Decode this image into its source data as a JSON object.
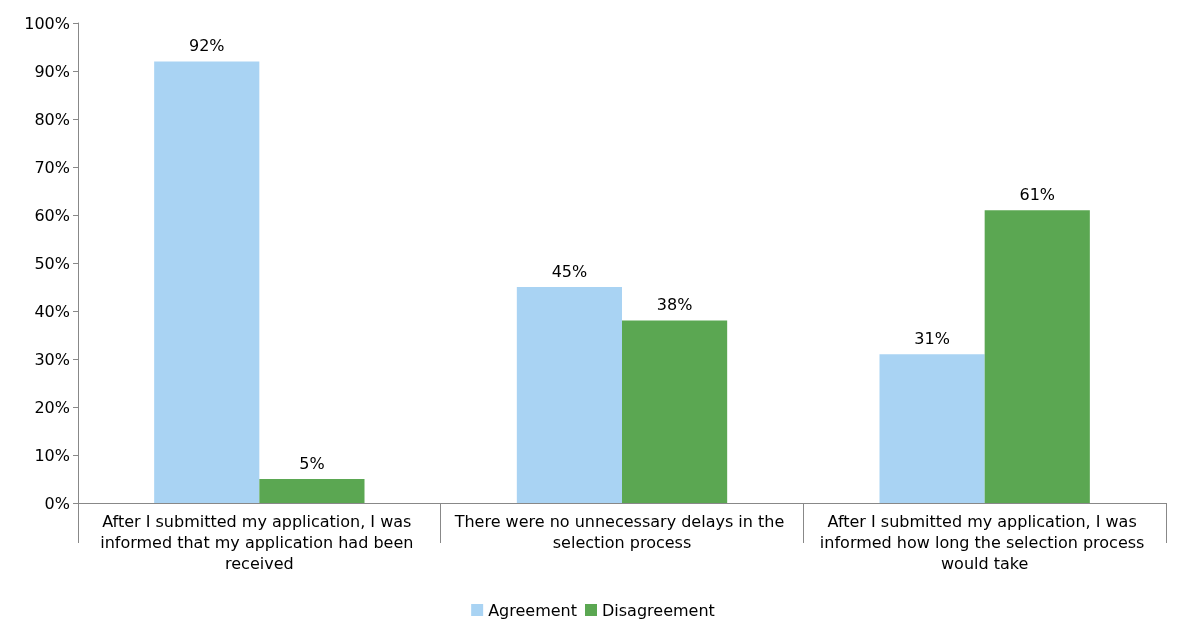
{
  "chart_data": {
    "type": "bar",
    "categories": [
      "After I submitted my application, I was informed that my application had been received",
      "There were no unnecessary delays in the selection process",
      "After I submitted my application, I was informed how long the selection process would take"
    ],
    "series": [
      {
        "name": "Agreement",
        "color": "#a9d3f3",
        "values": [
          92,
          45,
          31
        ],
        "value_labels": [
          "92%",
          "45%",
          "31%"
        ]
      },
      {
        "name": "Disagreement",
        "color": "#5ba752",
        "values": [
          5,
          38,
          61
        ],
        "value_labels": [
          "5%",
          "38%",
          "61%"
        ]
      }
    ],
    "ylim": [
      0,
      100
    ],
    "yticks": [
      {
        "value": 0,
        "label": "0%"
      },
      {
        "value": 10,
        "label": "10%"
      },
      {
        "value": 20,
        "label": "20%"
      },
      {
        "value": 30,
        "label": "30%"
      },
      {
        "value": 40,
        "label": "40%"
      },
      {
        "value": 50,
        "label": "50%"
      },
      {
        "value": 60,
        "label": "60%"
      },
      {
        "value": 70,
        "label": "70%"
      },
      {
        "value": 80,
        "label": "80%"
      },
      {
        "value": 90,
        "label": "90%"
      },
      {
        "value": 100,
        "label": "100%"
      }
    ],
    "grid": false,
    "legend": "bottom"
  }
}
